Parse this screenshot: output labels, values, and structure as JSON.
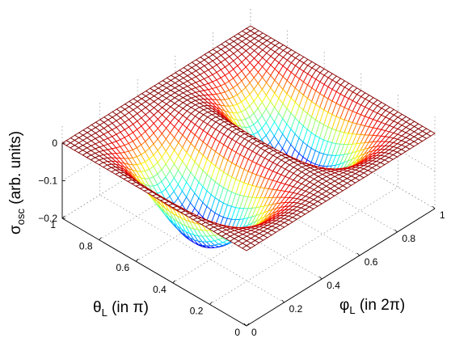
{
  "chart_data": {
    "type": "surface",
    "title": "",
    "colormap": "jet",
    "grid": true,
    "xaxis": {
      "label": "φ",
      "label_sub": "L",
      "label_rest": " (in 2π)",
      "range": [
        0,
        1
      ],
      "ticks": [
        "0",
        "0.2",
        "0.4",
        "0.6",
        "0.8",
        "1"
      ]
    },
    "yaxis": {
      "label": "θ",
      "label_sub": "L",
      "label_rest": " (in π)",
      "range": [
        0,
        1
      ],
      "ticks": [
        "0",
        "0.2",
        "0.4",
        "0.6",
        "0.8",
        "1"
      ]
    },
    "zaxis": {
      "label": "σ",
      "label_sub": "osc",
      "label_rest": " (arb. units)",
      "range": [
        -0.2,
        0
      ],
      "ticks": [
        "0",
        "−0.1",
        "−0.2"
      ]
    },
    "surface_model": {
      "function": "z = A * sin^2(pi*theta) * sin^2(2*pi*phi)",
      "A": -0.2,
      "theta_samples": 46,
      "phi_samples": 46,
      "min_value": -0.2,
      "max_value": 0
    }
  }
}
